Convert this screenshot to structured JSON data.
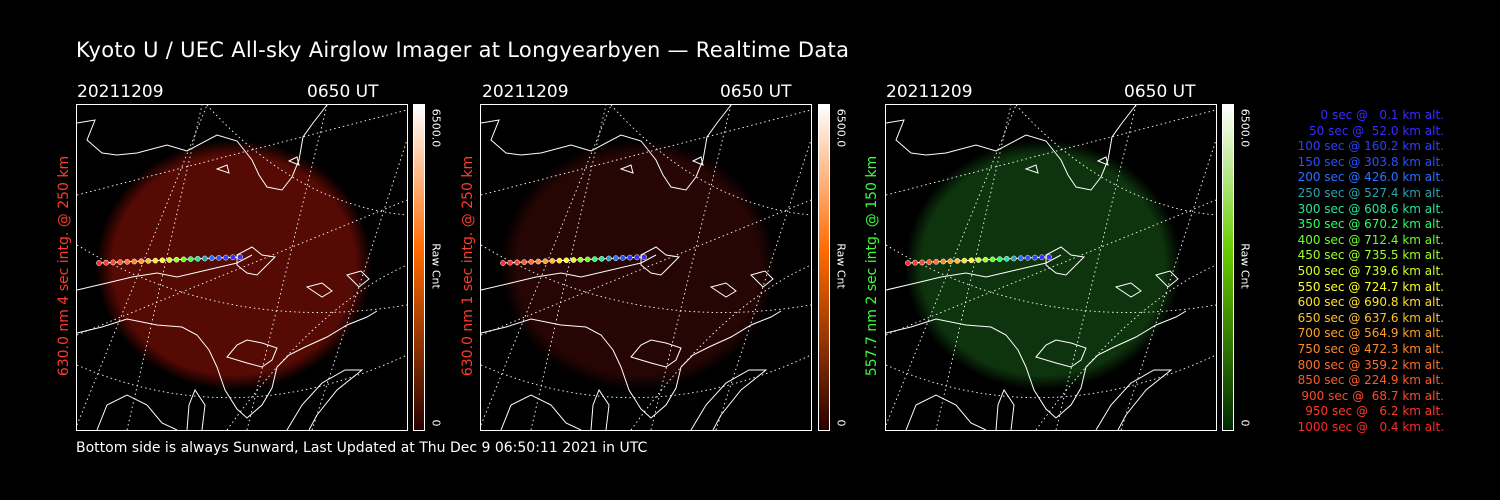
{
  "title": "Kyoto U / UEC All-sky Airglow Imager at Longyearbyen — Realtime Data",
  "footer": "Bottom side is always Sunward, Last Updated at Thu Dec  9 06:50:11 2021 in UTC",
  "panels": [
    {
      "date": "20211209",
      "time": "0650 UT",
      "label": "630.0 nm 4 sec intg. @ 250 km",
      "label_color": "#ff3b2a",
      "cbar_max": "6500.0",
      "cbar_min": "0",
      "cbar_unit": "Raw Cnt",
      "cbar_top": "#ffffff",
      "cbar_mid": "#ff6a00",
      "cbar_bottom": "#2a0000",
      "glow_color": "#5a0a04",
      "glow_opacity": 0.95
    },
    {
      "date": "20211209",
      "time": "0650 UT",
      "label": "630.0 nm 1 sec intg. @ 250 km",
      "label_color": "#ff3b2a",
      "cbar_max": "6500.0",
      "cbar_min": "0",
      "cbar_unit": "Raw Cnt",
      "cbar_top": "#ffffff",
      "cbar_mid": "#ff6a00",
      "cbar_bottom": "#2a0000",
      "glow_color": "#2a0604",
      "glow_opacity": 0.9
    },
    {
      "date": "20211209",
      "time": "0650 UT",
      "label": "557.7 nm 2 sec intg. @ 150 km",
      "label_color": "#3aff3a",
      "cbar_max": "6500.0",
      "cbar_min": "0",
      "cbar_unit": "Raw Cnt",
      "cbar_top": "#ffffff",
      "cbar_mid": "#66cc00",
      "cbar_bottom": "#002a00",
      "glow_color": "#0f3a0f",
      "glow_opacity": 0.9
    }
  ],
  "legend": [
    {
      "text": "  0 sec @   0.1 km alt.",
      "color": "#3b2bff"
    },
    {
      "text": " 50 sec @  52.0 km alt.",
      "color": "#3b2bff"
    },
    {
      "text": "100 sec @ 160.2 km alt.",
      "color": "#2a40ff"
    },
    {
      "text": "150 sec @ 303.8 km alt.",
      "color": "#2a50ff"
    },
    {
      "text": "200 sec @ 426.0 km alt.",
      "color": "#2a70ff"
    },
    {
      "text": "250 sec @ 527.4 km alt.",
      "color": "#2aa0b0"
    },
    {
      "text": "300 sec @ 608.6 km alt.",
      "color": "#2ae0a0"
    },
    {
      "text": "350 sec @ 670.2 km alt.",
      "color": "#2aff60"
    },
    {
      "text": "400 sec @ 712.4 km alt.",
      "color": "#6aff2a"
    },
    {
      "text": "450 sec @ 735.5 km alt.",
      "color": "#a0ff2a"
    },
    {
      "text": "500 sec @ 739.6 km alt.",
      "color": "#d0ff2a"
    },
    {
      "text": "550 sec @ 724.7 km alt.",
      "color": "#ffff2a"
    },
    {
      "text": "600 sec @ 690.8 km alt.",
      "color": "#ffe02a"
    },
    {
      "text": "650 sec @ 637.6 km alt.",
      "color": "#ffc02a"
    },
    {
      "text": "700 sec @ 564.9 km alt.",
      "color": "#ffa02a"
    },
    {
      "text": "750 sec @ 472.3 km alt.",
      "color": "#ff8a2a"
    },
    {
      "text": "800 sec @ 359.2 km alt.",
      "color": "#ff702a"
    },
    {
      "text": "850 sec @ 224.9 km alt.",
      "color": "#ff5a2a"
    },
    {
      "text": "900 sec @  68.7 km alt.",
      "color": "#ff4a2a"
    },
    {
      "text": "950 sec @   6.2 km alt.",
      "color": "#ff3a2a"
    },
    {
      "text": "1000 sec @   0.4 km alt.",
      "color": "#ff2a2a"
    }
  ]
}
